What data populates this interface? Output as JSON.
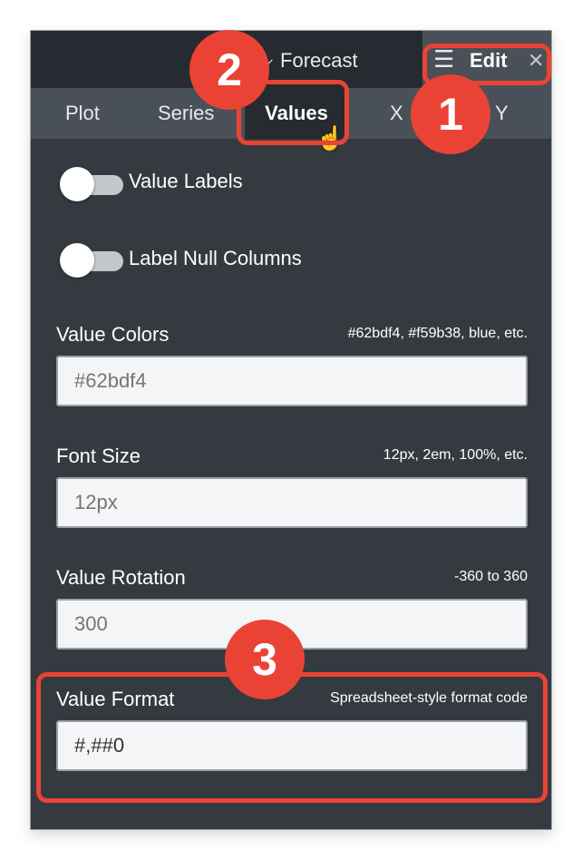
{
  "header": {
    "forecast_label": "Forecast",
    "edit_label": "Edit"
  },
  "tabs": [
    {
      "label": "Plot"
    },
    {
      "label": "Series"
    },
    {
      "label": "Values",
      "active": true
    },
    {
      "label": "X"
    },
    {
      "label": "Y"
    }
  ],
  "toggles": [
    {
      "label": "Value Labels",
      "on": false
    },
    {
      "label": "Label Null Columns",
      "on": false
    }
  ],
  "fields": [
    {
      "label": "Value Colors",
      "hint": "#62bdf4, #f59b38, blue, etc.",
      "placeholder": "#62bdf4",
      "value": ""
    },
    {
      "label": "Font Size",
      "hint": "12px, 2em, 100%, etc.",
      "placeholder": "12px",
      "value": ""
    },
    {
      "label": "Value Rotation",
      "hint": "-360 to 360",
      "placeholder": "300",
      "value": ""
    },
    {
      "label": "Value Format",
      "hint": "Spreadsheet-style format code",
      "placeholder": "",
      "value": "#,##0"
    }
  ],
  "annotations": {
    "badge1": "1",
    "badge2": "2",
    "badge3": "3",
    "color": "#ea4335"
  }
}
